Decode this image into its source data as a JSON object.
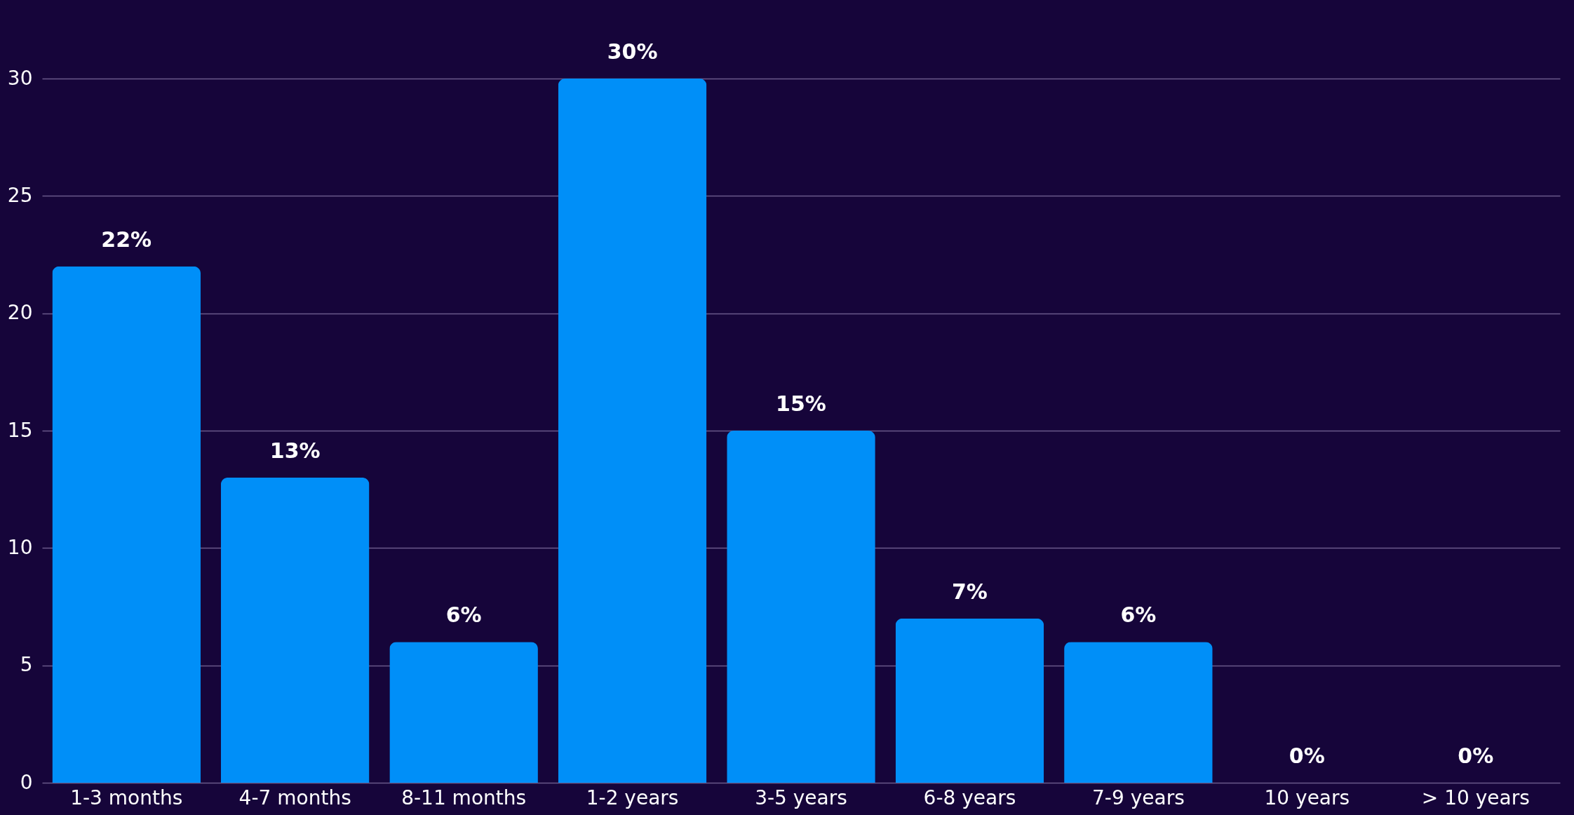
{
  "chart_data": {
    "type": "bar",
    "categories": [
      "1-3 months",
      "4-7 months",
      "8-11 months",
      "1-2 years",
      "3-5 years",
      "6-8 years",
      "7-9 years",
      "10 years",
      "> 10 years"
    ],
    "values": [
      22,
      13,
      6,
      30,
      15,
      7,
      6,
      0,
      0
    ],
    "value_labels": [
      "22%",
      "13%",
      "6%",
      "30%",
      "15%",
      "7%",
      "6%",
      "0%",
      "0%"
    ],
    "color": "#008ff8",
    "ylim": [
      0,
      30
    ],
    "yticks": [
      0,
      5,
      10,
      15,
      20,
      25,
      30
    ],
    "grid": "y"
  }
}
